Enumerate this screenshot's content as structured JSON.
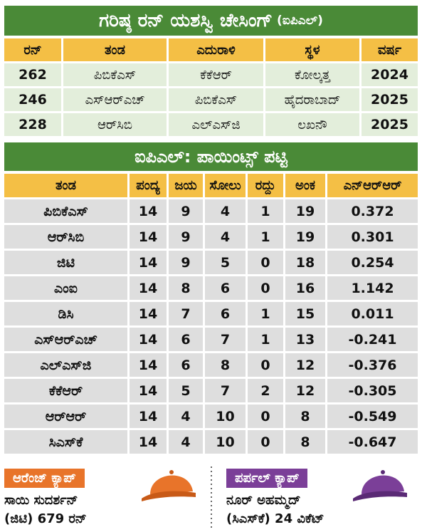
{
  "chase_table": {
    "title": "ಗರಿಷ್ಠ ರನ್ ಯಶಸ್ವಿ ಚೇಸಿಂಗ್",
    "title_note": "(ಐಪಿಎಲ್)",
    "headers": [
      "ರನ್",
      "ತಂಡ",
      "ಎದುರಾಳಿ",
      "ಸ್ಥಳ",
      "ವರ್ಷ"
    ],
    "rows": [
      [
        "262",
        "ಪಿಬಿಕೆಎಸ್",
        "ಕೆಕೆಆರ್",
        "ಕೋಲ್ಕತ್ತ",
        "2024"
      ],
      [
        "246",
        "ಎಸ್‌ಆರ್‌ಎಚ್",
        "ಪಿಬಿಕೆಎಸ್",
        "ಹೈದರಾಬಾದ್",
        "2025"
      ],
      [
        "228",
        "ಆರ್‌ಸಿಬಿ",
        "ಎಲ್‌ಎಸ್‌ಜಿ",
        "ಲಖನೌ",
        "2025"
      ]
    ]
  },
  "points_table": {
    "title": "ಐಪಿಎಲ್: ಪಾಯಿಂಟ್ಸ್ ಪಟ್ಟಿ",
    "headers": [
      "ತಂಡ",
      "ಪಂದ್ಯ",
      "ಜಯ",
      "ಸೋಲು",
      "ರದ್ದು",
      "ಅಂಕ",
      "ಎನ್‌ಆರ್‌ಆರ್"
    ],
    "rows": [
      [
        "ಪಿಬಿಕೆಎಸ್",
        "14",
        "9",
        "4",
        "1",
        "19",
        "0.372"
      ],
      [
        "ಆರ್‌ಸಿಬಿ",
        "14",
        "9",
        "4",
        "1",
        "19",
        "0.301"
      ],
      [
        "ಜಿಟಿ",
        "14",
        "9",
        "5",
        "0",
        "18",
        "0.254"
      ],
      [
        "ಎಂಐ",
        "14",
        "8",
        "6",
        "0",
        "16",
        "1.142"
      ],
      [
        "ಡಿಸಿ",
        "14",
        "7",
        "6",
        "1",
        "15",
        "0.011"
      ],
      [
        "ಎಸ್‌ಆರ್‌ಎಚ್",
        "14",
        "6",
        "7",
        "1",
        "13",
        "-0.241"
      ],
      [
        "ಎಲ್‌ಎಸ್‌ಜಿ",
        "14",
        "6",
        "8",
        "0",
        "12",
        "-0.376"
      ],
      [
        "ಕೆಕೆಆರ್",
        "14",
        "5",
        "7",
        "2",
        "12",
        "-0.305"
      ],
      [
        "ಆರ್‌ಆರ್",
        "14",
        "4",
        "10",
        "0",
        "8",
        "-0.549"
      ],
      [
        "ಸಿಎಸ್‌ಕೆ",
        "14",
        "4",
        "10",
        "0",
        "8",
        "-0.647"
      ]
    ]
  },
  "orange_cap": {
    "label": "ಆರೆಂಜ್ ಕ್ಯಾಪ್",
    "player": "ಸಾಯಿ ಸುದರ್ಶನ್",
    "detail": "(ಜಿಟಿ) 679 ರನ್"
  },
  "purple_cap": {
    "label": "ಪರ್ಪಲ್ ಕ್ಯಾಪ್",
    "player": "ನೂರ್ ಅಹಮ್ಮದ್",
    "detail": "(ಸಿಎಸ್‌ಕೆ) 24 ವಿಕೆಟ್"
  }
}
